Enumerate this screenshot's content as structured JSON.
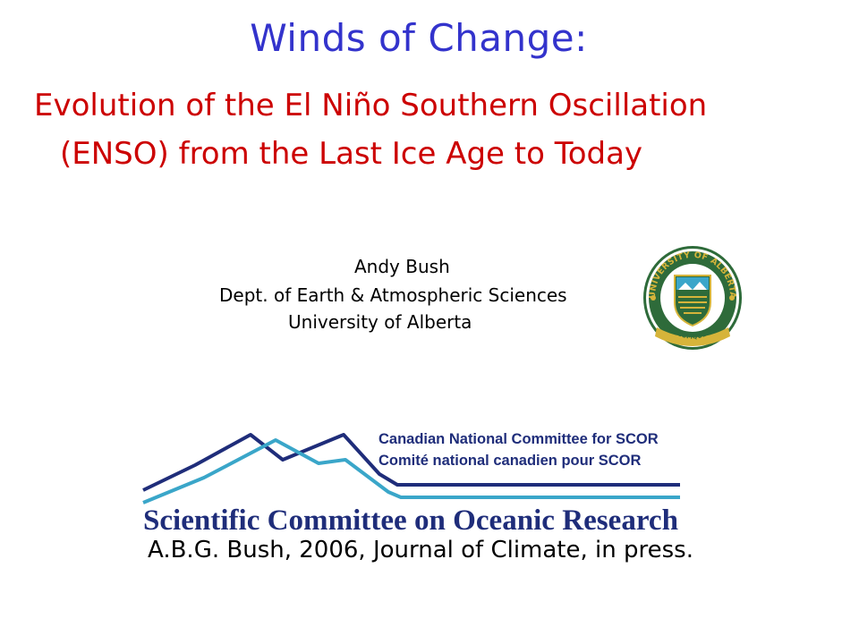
{
  "slide": {
    "title": "Winds of Change:",
    "subtitle_line1": "Evolution of the El Niño Southern Oscillation",
    "subtitle_line2": "(ENSO) from the Last Ice Age to Today",
    "author": {
      "name": "Andy Bush",
      "department": "Dept. of Earth & Atmospheric Sciences",
      "institution": "University of Alberta"
    },
    "ua_logo": {
      "top_text": "UNIVERSITY OF ALBERTA",
      "motto": "QUAECUMQUE VERA"
    },
    "scor_logo": {
      "line_en": "Canadian National Committee for SCOR",
      "line_fr": "Comité national canadien pour SCOR",
      "wordmark": "Scientific Committee on Oceanic Research"
    },
    "citation": "A.B.G. Bush, 2006, Journal of Climate, in press."
  },
  "colors": {
    "title": "#3333cc",
    "subtitle": "#cc0000",
    "scor_navy": "#1f2d7a",
    "scor_teal": "#3aa6c9",
    "ua_green": "#2e6b3a",
    "ua_gold": "#d6b43a"
  }
}
